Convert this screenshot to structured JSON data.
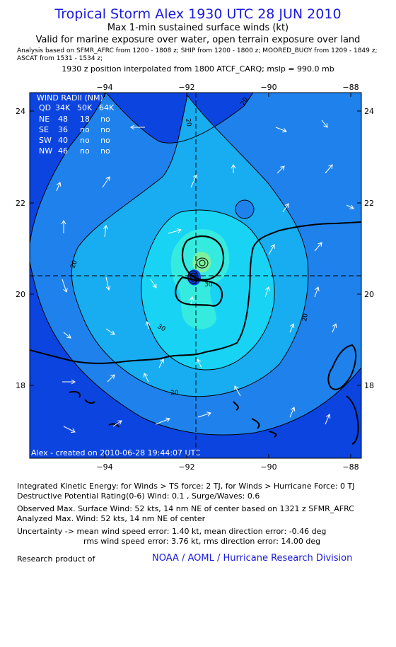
{
  "header": {
    "title": "Tropical Storm Alex 1930 UTC 28 JUN 2010",
    "subtitle1": "Max 1-min sustained surface winds (kt)",
    "subtitle2": "Valid for marine exposure over water, open terrain exposure over land",
    "analysis_line1": "Analysis based on  SFMR_AFRC from 1200 - 1808 z;  SHIP from 1200 - 1800 z;  MOORED_BUOY from 1209 - 1849 z;",
    "analysis_line2": "ASCAT from 1531 - 1534 z;",
    "position_line": "1930 z position interpolated from 1800 ATCF_CARQ; mslp = 990.0 mb"
  },
  "map": {
    "lon_ticks": [
      "−94",
      "−92",
      "−90",
      "−88"
    ],
    "lat_ticks": [
      "24",
      "22",
      "20",
      "18"
    ],
    "contour_labels": [
      "20",
      "20",
      "20",
      "20",
      "20",
      "30",
      "30"
    ],
    "wind_radii": {
      "header": [
        "QD",
        "34K",
        "50K",
        "64K"
      ],
      "title": "WIND RADII (NM)",
      "rows": [
        [
          "NE",
          "48",
          "18",
          "no"
        ],
        [
          "SE",
          "36",
          "no",
          "no"
        ],
        [
          "SW",
          "40",
          "no",
          "no"
        ],
        [
          "NW",
          "46",
          "no",
          "no"
        ]
      ]
    },
    "created": "Alex - created on 2010-06-28 19:44:07 UTC",
    "colors": {
      "deep": "#0c44e0",
      "band10_20": "#1f82ec",
      "band20_30": "#18acf0",
      "band30_40": "#19d3f4",
      "band40_50": "#35ebe0",
      "band50": "#7df0a0",
      "land": "#000000"
    }
  },
  "footer": {
    "ike": "Integrated Kinetic Energy:  for Winds > TS force: 2 TJ,  for Winds > Hurricane Force: 0 TJ",
    "dpr": "Destructive Potential Rating(0-6)   Wind: 0.1 , Surge/Waves: 0.6",
    "observed": "Observed Max. Surface Wind: 52 kts, 14 nm NE of center based on 1321 z SFMR_AFRC",
    "analyzed": "Analyzed Max. Wind: 52 kts, 14 nm NE of center",
    "uncert1": "Uncertainty -> mean wind speed error: 1.40 kt,   mean direction error:  -0.46 deg",
    "uncert2": "rms wind speed error: 3.76 kt,   rms direction error: 14.00 deg",
    "research": "Research product of",
    "credit": "NOAA / AOML / Hurricane Research Division"
  }
}
